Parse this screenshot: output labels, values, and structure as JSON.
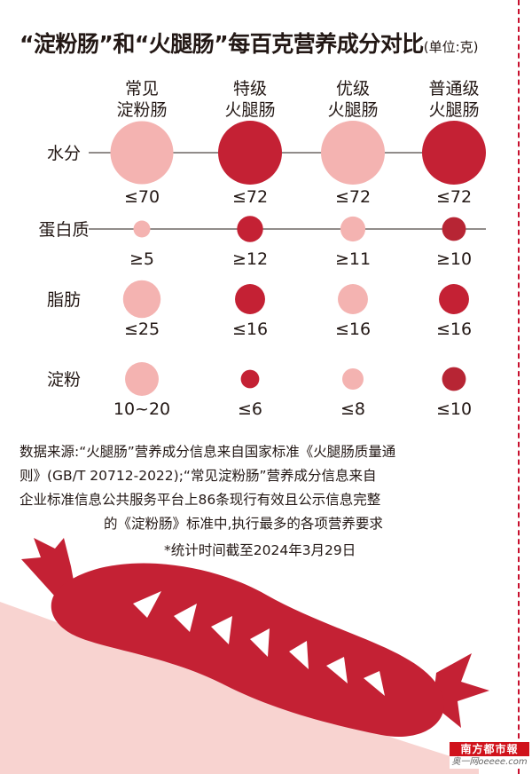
{
  "title": {
    "main": "“淀粉肠”和“火腿肠”每百克营养成分对比",
    "unit": "(单位:克)"
  },
  "colors": {
    "light": "#f4b3b1",
    "red": "#c42134",
    "dark_red": "#b72534",
    "line": "#231815",
    "accent": "#c8102e",
    "sausage": "#c42134",
    "background_wedge": "#f8d3d0"
  },
  "chart_data": {
    "type": "bubble-matrix",
    "columns": [
      {
        "line1": "常见",
        "line2": "淀粉肠"
      },
      {
        "line1": "特级",
        "line2": "火腿肠"
      },
      {
        "line1": "优级",
        "line2": "火腿肠"
      },
      {
        "line1": "普通级",
        "line2": "火腿肠"
      }
    ],
    "rows": [
      {
        "label": "水分",
        "values": [
          70,
          72,
          72,
          72
        ],
        "value_labels": [
          "≤70",
          "≤72",
          "≤72",
          "≤72"
        ],
        "colors": [
          "light",
          "red",
          "light",
          "red"
        ]
      },
      {
        "label": "蛋白质",
        "values": [
          5,
          12,
          11,
          10
        ],
        "value_labels": [
          "≥5",
          "≥12",
          "≥11",
          "≥10"
        ],
        "colors": [
          "light",
          "red",
          "light",
          "dark_red"
        ]
      },
      {
        "label": "脂肪",
        "values": [
          25,
          16,
          16,
          16
        ],
        "value_labels": [
          "≤25",
          "≤16",
          "≤16",
          "≤16"
        ],
        "colors": [
          "light",
          "red",
          "light",
          "red"
        ]
      },
      {
        "label": "淀粉",
        "values": [
          20,
          6,
          8,
          10
        ],
        "value_labels": [
          "10~20",
          "≤6",
          "≤8",
          "≤10"
        ],
        "colors": [
          "light",
          "red",
          "light",
          "dark_red"
        ]
      }
    ]
  },
  "source": {
    "line1": "数据来源:“火腿肠”营养成分信息来自国家标准《火腿肠质量通",
    "line2": "则》(GB/T 20712-2022);“常见淀粉肠”营养成分信息来自",
    "line3": "企业标准信息公共服务平台上86条现行有效且公示信息完整",
    "line4": "的《淀粉肠》标准中,执行最多的各项营养要求",
    "note": "*统计时间截至2024年3月29日"
  },
  "logo": {
    "brand": "南方都市報",
    "site": "奥一网oeeee.com"
  }
}
